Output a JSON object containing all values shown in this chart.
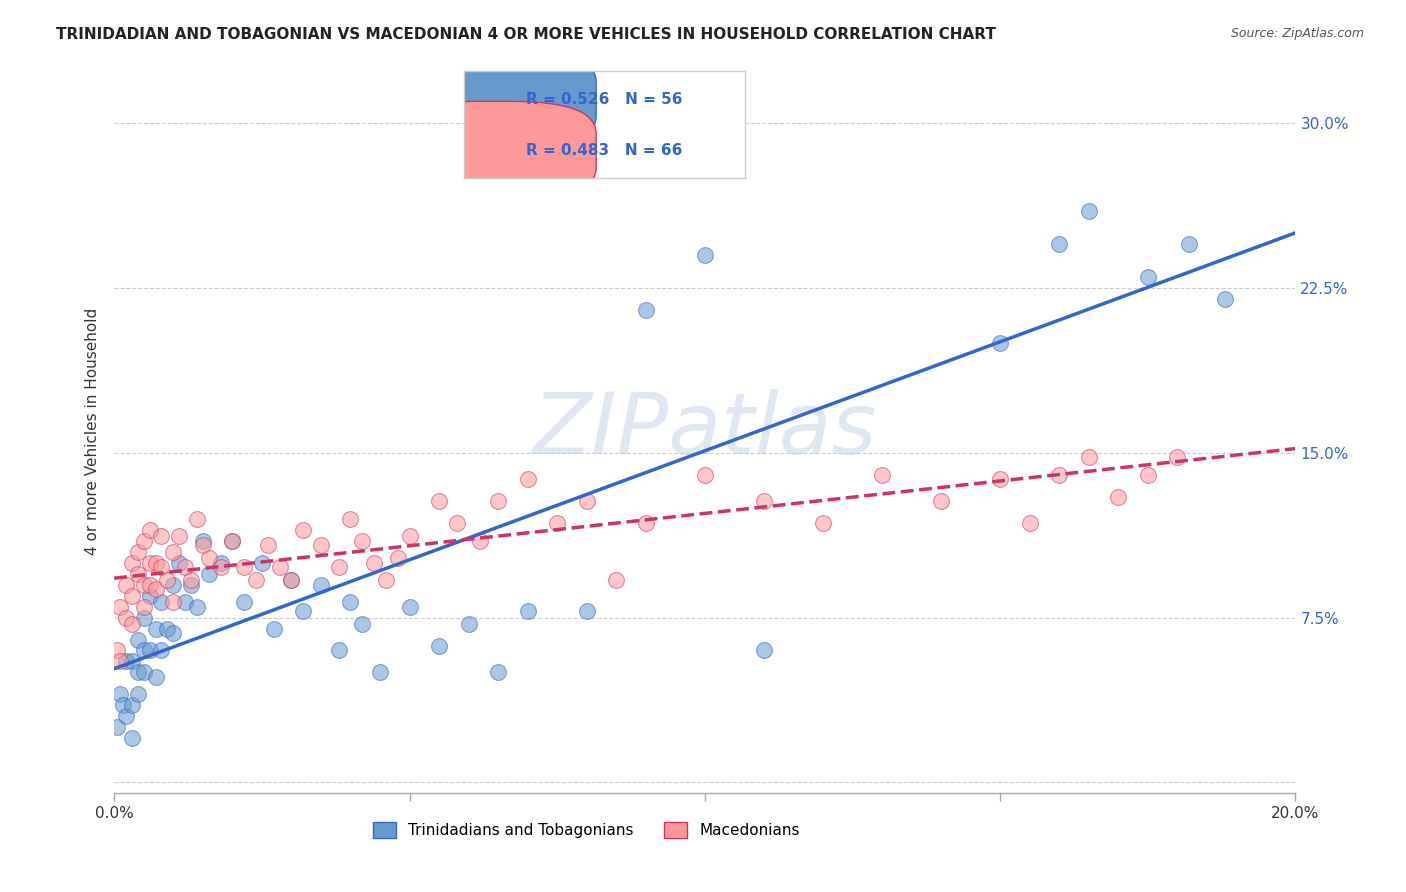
{
  "title": "TRINIDADIAN AND TOBAGONIAN VS MACEDONIAN 4 OR MORE VEHICLES IN HOUSEHOLD CORRELATION CHART",
  "source": "Source: ZipAtlas.com",
  "ylabel": "4 or more Vehicles in Household",
  "xlim": [
    0.0,
    0.2
  ],
  "ylim": [
    -0.005,
    0.325
  ],
  "xticks": [
    0.0,
    0.05,
    0.1,
    0.15,
    0.2
  ],
  "yticks": [
    0.0,
    0.075,
    0.15,
    0.225,
    0.3
  ],
  "blue_color": "#6699CC",
  "pink_color": "#FF9999",
  "blue_line_color": "#3366CC",
  "pink_line_color": "#CC3366",
  "grid_color": "#CCCCCC",
  "background_color": "#FFFFFF",
  "watermark": "ZIPatlas",
  "trin_x": [
    0.0005,
    0.001,
    0.0015,
    0.002,
    0.002,
    0.003,
    0.003,
    0.003,
    0.004,
    0.004,
    0.004,
    0.005,
    0.005,
    0.005,
    0.006,
    0.006,
    0.007,
    0.007,
    0.008,
    0.008,
    0.009,
    0.01,
    0.01,
    0.011,
    0.012,
    0.013,
    0.014,
    0.015,
    0.016,
    0.018,
    0.02,
    0.022,
    0.025,
    0.027,
    0.03,
    0.032,
    0.035,
    0.038,
    0.04,
    0.042,
    0.045,
    0.05,
    0.055,
    0.06,
    0.065,
    0.07,
    0.08,
    0.09,
    0.1,
    0.11,
    0.15,
    0.16,
    0.165,
    0.175,
    0.182,
    0.188
  ],
  "trin_y": [
    0.025,
    0.04,
    0.035,
    0.055,
    0.03,
    0.055,
    0.035,
    0.02,
    0.065,
    0.05,
    0.04,
    0.075,
    0.06,
    0.05,
    0.085,
    0.06,
    0.07,
    0.048,
    0.082,
    0.06,
    0.07,
    0.09,
    0.068,
    0.1,
    0.082,
    0.09,
    0.08,
    0.11,
    0.095,
    0.1,
    0.11,
    0.082,
    0.1,
    0.07,
    0.092,
    0.078,
    0.09,
    0.06,
    0.082,
    0.072,
    0.05,
    0.08,
    0.062,
    0.072,
    0.05,
    0.078,
    0.078,
    0.215,
    0.24,
    0.06,
    0.2,
    0.245,
    0.26,
    0.23,
    0.245,
    0.22
  ],
  "mac_x": [
    0.0005,
    0.001,
    0.001,
    0.002,
    0.002,
    0.003,
    0.003,
    0.003,
    0.004,
    0.004,
    0.005,
    0.005,
    0.005,
    0.006,
    0.006,
    0.006,
    0.007,
    0.007,
    0.008,
    0.008,
    0.009,
    0.01,
    0.01,
    0.011,
    0.012,
    0.013,
    0.014,
    0.015,
    0.016,
    0.018,
    0.02,
    0.022,
    0.024,
    0.026,
    0.028,
    0.03,
    0.032,
    0.035,
    0.038,
    0.04,
    0.042,
    0.044,
    0.046,
    0.048,
    0.05,
    0.055,
    0.058,
    0.062,
    0.065,
    0.07,
    0.075,
    0.08,
    0.085,
    0.09,
    0.1,
    0.11,
    0.12,
    0.13,
    0.14,
    0.15,
    0.155,
    0.16,
    0.165,
    0.17,
    0.175,
    0.18
  ],
  "mac_y": [
    0.06,
    0.055,
    0.08,
    0.075,
    0.09,
    0.085,
    0.072,
    0.1,
    0.095,
    0.105,
    0.09,
    0.08,
    0.11,
    0.1,
    0.09,
    0.115,
    0.1,
    0.088,
    0.112,
    0.098,
    0.092,
    0.105,
    0.082,
    0.112,
    0.098,
    0.092,
    0.12,
    0.108,
    0.102,
    0.098,
    0.11,
    0.098,
    0.092,
    0.108,
    0.098,
    0.092,
    0.115,
    0.108,
    0.098,
    0.12,
    0.11,
    0.1,
    0.092,
    0.102,
    0.112,
    0.128,
    0.118,
    0.11,
    0.128,
    0.138,
    0.118,
    0.128,
    0.092,
    0.118,
    0.14,
    0.128,
    0.118,
    0.14,
    0.128,
    0.138,
    0.118,
    0.14,
    0.148,
    0.13,
    0.14,
    0.148
  ]
}
